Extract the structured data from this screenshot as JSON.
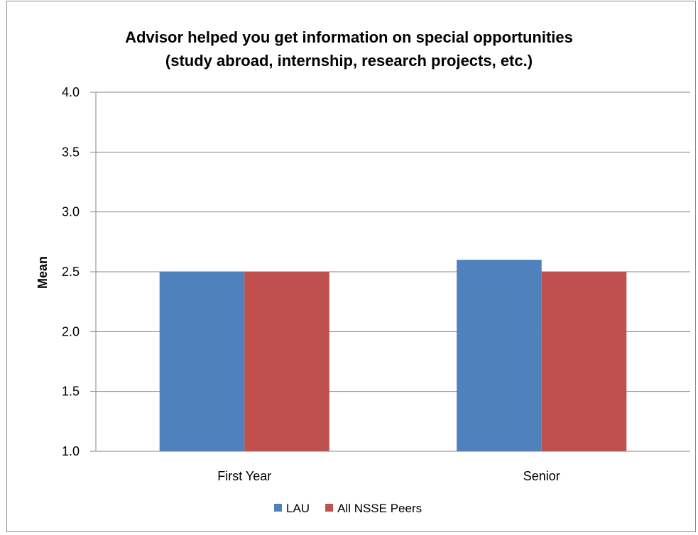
{
  "chart_data": {
    "type": "bar",
    "title_line1": "Advisor helped you get information on special opportunities",
    "title_line2": "(study abroad, internship, research projects, etc.)",
    "xlabel": "",
    "ylabel": "Mean",
    "ylim": [
      1.0,
      4.0
    ],
    "yticks": [
      "1.0",
      "1.5",
      "2.0",
      "2.5",
      "3.0",
      "3.5",
      "4.0"
    ],
    "categories": [
      "First Year",
      "Senior"
    ],
    "series": [
      {
        "name": "LAU",
        "values": [
          2.5,
          2.6
        ],
        "color": "#4f81bd"
      },
      {
        "name": "All NSSE Peers",
        "values": [
          2.5,
          2.5
        ],
        "color": "#c0504d"
      }
    ],
    "grid": true,
    "legend": "bottom"
  }
}
